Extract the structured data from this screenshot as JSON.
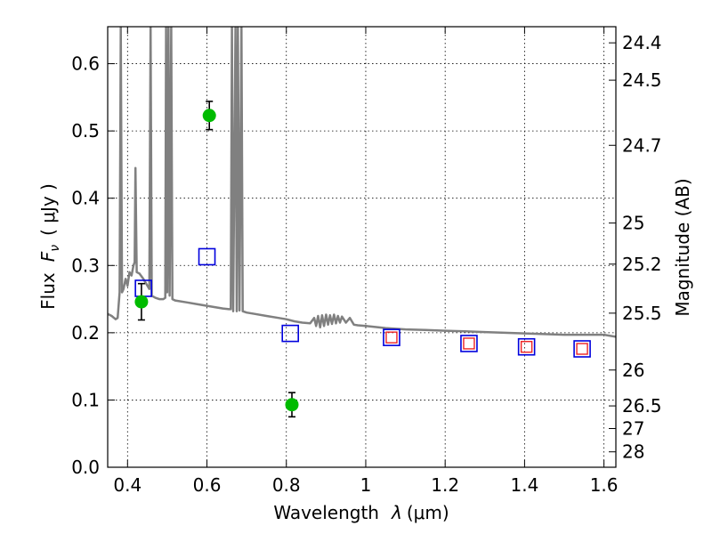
{
  "chart_data": {
    "type": "scatter",
    "xlabel_prefix": "Wavelength",
    "xlabel_symbol": "λ",
    "xlabel_unit": "(μm)",
    "ylabel_left_prefix": "Flux",
    "ylabel_left_symbol": "F",
    "ylabel_left_subscript": "ν",
    "ylabel_left_unit": "( μJy )",
    "ylabel_right": "Magnitude (AB)",
    "xlim": [
      0.35,
      1.63
    ],
    "ylim": [
      0.0,
      0.655
    ],
    "grid": true,
    "x_ticks": [
      {
        "value": 0.4,
        "label": "0.4"
      },
      {
        "value": 0.6,
        "label": "0.6"
      },
      {
        "value": 0.8,
        "label": "0.8"
      },
      {
        "value": 1.0,
        "label": "1"
      },
      {
        "value": 1.2,
        "label": "1.2"
      },
      {
        "value": 1.4,
        "label": "1.4"
      },
      {
        "value": 1.6,
        "label": "1.6"
      }
    ],
    "y_ticks": [
      {
        "value": 0.0,
        "label": "0.0"
      },
      {
        "value": 0.1,
        "label": "0.1"
      },
      {
        "value": 0.2,
        "label": "0.2"
      },
      {
        "value": 0.3,
        "label": "0.3"
      },
      {
        "value": 0.4,
        "label": "0.4"
      },
      {
        "value": 0.5,
        "label": "0.5"
      },
      {
        "value": 0.6,
        "label": "0.6"
      }
    ],
    "mag_ticks": [
      {
        "mag": 24.4,
        "label": "24.4"
      },
      {
        "mag": 24.5,
        "label": "24.5"
      },
      {
        "mag": 24.7,
        "label": "24.7"
      },
      {
        "mag": 25.0,
        "label": "25"
      },
      {
        "mag": 25.2,
        "label": "25.2"
      },
      {
        "mag": 25.5,
        "label": "25.5"
      },
      {
        "mag": 26.0,
        "label": "26"
      },
      {
        "mag": 26.5,
        "label": "26.5"
      },
      {
        "mag": 27.0,
        "label": "27"
      },
      {
        "mag": 28.0,
        "label": "28"
      }
    ],
    "colors": {
      "model": "#808080",
      "observed": "#00bb00",
      "model_photometry": "#0000dd",
      "inner_photometry": "#ee2222",
      "errorbar": "#000000"
    },
    "model_spectrum": [
      [
        0.35,
        0.228
      ],
      [
        0.36,
        0.225
      ],
      [
        0.37,
        0.22
      ],
      [
        0.375,
        0.222
      ],
      [
        0.38,
        0.26
      ],
      [
        0.383,
        0.655
      ],
      [
        0.386,
        0.26
      ],
      [
        0.39,
        0.265
      ],
      [
        0.395,
        0.28
      ],
      [
        0.4,
        0.27
      ],
      [
        0.405,
        0.29
      ],
      [
        0.41,
        0.285
      ],
      [
        0.415,
        0.3
      ],
      [
        0.418,
        0.305
      ],
      [
        0.42,
        0.445
      ],
      [
        0.423,
        0.29
      ],
      [
        0.43,
        0.288
      ],
      [
        0.44,
        0.28
      ],
      [
        0.45,
        0.27
      ],
      [
        0.455,
        0.265
      ],
      [
        0.458,
        0.655
      ],
      [
        0.461,
        0.255
      ],
      [
        0.47,
        0.252
      ],
      [
        0.48,
        0.25
      ],
      [
        0.49,
        0.25
      ],
      [
        0.495,
        0.252
      ],
      [
        0.497,
        0.655
      ],
      [
        0.5,
        0.26
      ],
      [
        0.503,
        0.655
      ],
      [
        0.506,
        0.255
      ],
      [
        0.51,
        0.655
      ],
      [
        0.513,
        0.25
      ],
      [
        0.52,
        0.248
      ],
      [
        0.55,
        0.245
      ],
      [
        0.58,
        0.242
      ],
      [
        0.6,
        0.24
      ],
      [
        0.62,
        0.238
      ],
      [
        0.64,
        0.236
      ],
      [
        0.655,
        0.235
      ],
      [
        0.66,
        0.235
      ],
      [
        0.663,
        0.655
      ],
      [
        0.666,
        0.232
      ],
      [
        0.672,
        0.655
      ],
      [
        0.675,
        0.232
      ],
      [
        0.678,
        0.655
      ],
      [
        0.682,
        0.233
      ],
      [
        0.687,
        0.655
      ],
      [
        0.69,
        0.232
      ],
      [
        0.7,
        0.23
      ],
      [
        0.72,
        0.228
      ],
      [
        0.75,
        0.225
      ],
      [
        0.78,
        0.222
      ],
      [
        0.8,
        0.22
      ],
      [
        0.82,
        0.217
      ],
      [
        0.84,
        0.215
      ],
      [
        0.86,
        0.214
      ],
      [
        0.87,
        0.222
      ],
      [
        0.875,
        0.21
      ],
      [
        0.88,
        0.225
      ],
      [
        0.885,
        0.208
      ],
      [
        0.89,
        0.226
      ],
      [
        0.895,
        0.21
      ],
      [
        0.9,
        0.227
      ],
      [
        0.905,
        0.212
      ],
      [
        0.91,
        0.226
      ],
      [
        0.915,
        0.213
      ],
      [
        0.92,
        0.227
      ],
      [
        0.925,
        0.214
      ],
      [
        0.93,
        0.225
      ],
      [
        0.935,
        0.215
      ],
      [
        0.94,
        0.224
      ],
      [
        0.95,
        0.215
      ],
      [
        0.96,
        0.222
      ],
      [
        0.97,
        0.212
      ],
      [
        0.98,
        0.211
      ],
      [
        1.0,
        0.21
      ],
      [
        1.05,
        0.207
      ],
      [
        1.1,
        0.205
      ],
      [
        1.15,
        0.204
      ],
      [
        1.2,
        0.203
      ],
      [
        1.25,
        0.202
      ],
      [
        1.3,
        0.201
      ],
      [
        1.35,
        0.2
      ],
      [
        1.4,
        0.199
      ],
      [
        1.45,
        0.198
      ],
      [
        1.5,
        0.197
      ],
      [
        1.55,
        0.197
      ],
      [
        1.6,
        0.197
      ],
      [
        1.63,
        0.194
      ]
    ],
    "observed": [
      {
        "x": 0.435,
        "y": 0.246,
        "yerr": 0.027
      },
      {
        "x": 0.606,
        "y": 0.523,
        "yerr": 0.021
      },
      {
        "x": 0.814,
        "y": 0.093,
        "yerr": 0.018
      }
    ],
    "model_photometry": [
      {
        "x": 0.44,
        "y": 0.266
      },
      {
        "x": 0.6,
        "y": 0.313
      },
      {
        "x": 0.81,
        "y": 0.199
      },
      {
        "x": 1.065,
        "y": 0.193
      },
      {
        "x": 1.26,
        "y": 0.184
      },
      {
        "x": 1.405,
        "y": 0.179
      },
      {
        "x": 1.545,
        "y": 0.176
      }
    ],
    "inner_photometry": [
      {
        "x": 1.065,
        "y": 0.193
      },
      {
        "x": 1.26,
        "y": 0.184
      },
      {
        "x": 1.405,
        "y": 0.179
      },
      {
        "x": 1.545,
        "y": 0.176
      }
    ]
  }
}
